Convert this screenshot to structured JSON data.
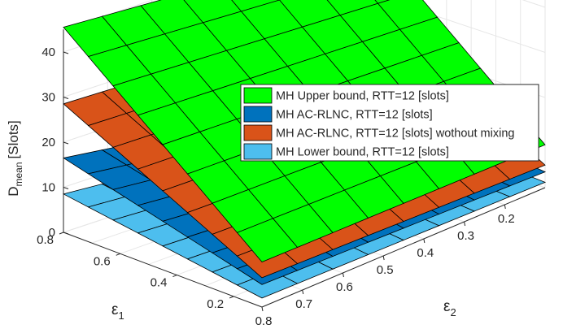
{
  "chart_data": {
    "type": "surface3d",
    "zlabel_main": "D",
    "zlabel_sub": "mean",
    "zlabel_unit": "[Slots]",
    "xlabel_main": "ε",
    "xlabel_sub": "1",
    "ylabel_main": "ε",
    "ylabel_sub": "2",
    "eps1_ticks": [
      "0.8",
      "0.6",
      "0.4",
      "0.2"
    ],
    "eps2_ticks": [
      "0.8",
      "0.7",
      "0.6",
      "0.5",
      "0.4",
      "0.3",
      "0.2"
    ],
    "z_ticks": [
      "0",
      "10",
      "20",
      "30",
      "40"
    ],
    "eps1_range": [
      0.1,
      0.8
    ],
    "eps2_range": [
      0.1,
      0.8
    ],
    "zlim": [
      0,
      45
    ],
    "grid": true,
    "legend_position": "top-right",
    "corner_values_note": "z at corners [e1=0.8,e2=0.8], [e1=0.1,e2=0.8], [e1=0.8,e2=0.1], [e1=0.1,e2=0.1]",
    "series": [
      {
        "name": "MH Lower bound, RTT=12 [slots]",
        "color": "#4DBEEE",
        "z_corners": [
          8.5,
          2.0,
          3.5,
          1.2
        ]
      },
      {
        "name": "MH AC-RLNC, RTT=12 [slots]",
        "color": "#0072BD",
        "z_corners": [
          16.5,
          5.0,
          8.0,
          3.5
        ]
      },
      {
        "name": "MH AC-RLNC, RTT=12 [slots] wothout mixing",
        "color": "#D95319",
        "z_corners": [
          28.5,
          6.5,
          27.0,
          5.0
        ]
      },
      {
        "name": "MH Upper bound, RTT=12 [slots]",
        "color": "#00FF00",
        "z_corners": [
          45.5,
          10.0,
          42.0,
          9.5
        ]
      }
    ],
    "legend_order": [
      3,
      1,
      2,
      0
    ]
  }
}
